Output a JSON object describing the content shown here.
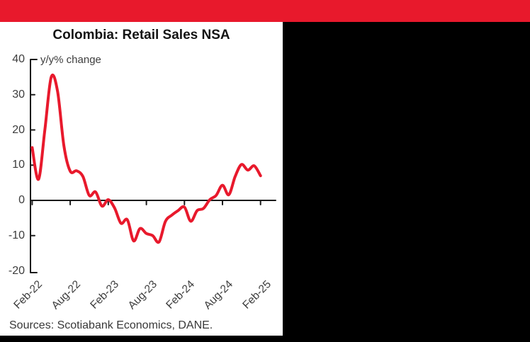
{
  "page": {
    "top_bar_color": "#e8192c",
    "side_panel_color": "#000000"
  },
  "chart": {
    "title": "Colombia: Retail Sales NSA",
    "unit_label": "y/y% change",
    "source_note": "Sources: Scotiabank Economics, DANE.",
    "line_color": "#e8192c",
    "axis_color": "#1a1a1a"
  },
  "chart_data": {
    "type": "line",
    "title": "Colombia: Retail Sales NSA",
    "ylabel": "y/y% change",
    "ylim": [
      -20,
      40
    ],
    "y_ticks": [
      40,
      30,
      20,
      10,
      0,
      -10,
      -20
    ],
    "grid": false,
    "legend": "none",
    "series_name": "Retail sales y/y % change",
    "x": [
      "Feb-22",
      "Mar-22",
      "Apr-22",
      "May-22",
      "Jun-22",
      "Jul-22",
      "Aug-22",
      "Sep-22",
      "Oct-22",
      "Nov-22",
      "Dec-22",
      "Jan-23",
      "Feb-23",
      "Mar-23",
      "Apr-23",
      "May-23",
      "Jun-23",
      "Jul-23",
      "Aug-23",
      "Sep-23",
      "Oct-23",
      "Nov-23",
      "Dec-23",
      "Jan-24",
      "Feb-24",
      "Mar-24",
      "Apr-24",
      "May-24",
      "Jun-24",
      "Jul-24",
      "Aug-24",
      "Sep-24",
      "Oct-24",
      "Nov-24",
      "Dec-24",
      "Jan-25",
      "Feb-25"
    ],
    "values": [
      15,
      6,
      20,
      35,
      31,
      15.5,
      8.3,
      8.4,
      6.8,
      1.4,
      2.4,
      -1.6,
      0.2,
      -2.2,
      -6.5,
      -5.5,
      -11.5,
      -8,
      -9.4,
      -10,
      -11.8,
      -6,
      -4.2,
      -2.9,
      -1.9,
      -5.9,
      -2.9,
      -2.3,
      0.2,
      1.4,
      4.3,
      1.6,
      6.8,
      10.2,
      8.6,
      9.8,
      7
    ],
    "x_tick_labels": [
      "Feb-22",
      "Aug-22",
      "Feb-23",
      "Aug-23",
      "Feb-24",
      "Aug-24",
      "Feb-25"
    ],
    "source": "Sources: Scotiabank Economics, DANE."
  }
}
